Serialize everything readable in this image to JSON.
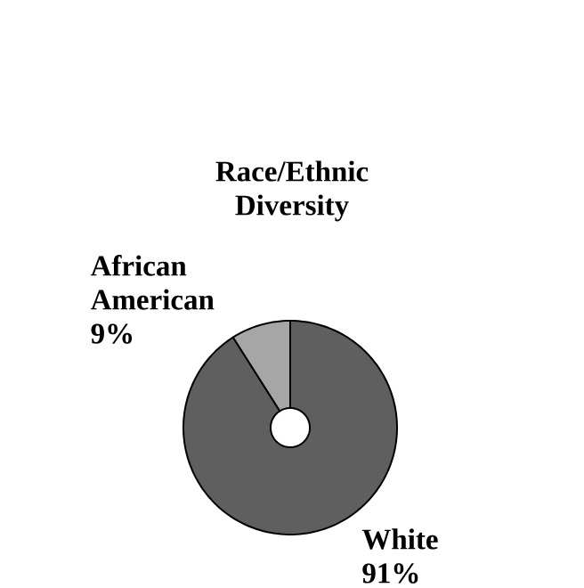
{
  "chart_data": {
    "type": "donut",
    "title": "Race/Ethnic Diversity",
    "categories": [
      "African American",
      "White"
    ],
    "values": [
      9,
      91
    ],
    "value_labels": [
      "9%",
      "91%"
    ],
    "colors": [
      "#a6a6a6",
      "#5f5f5f"
    ]
  }
}
